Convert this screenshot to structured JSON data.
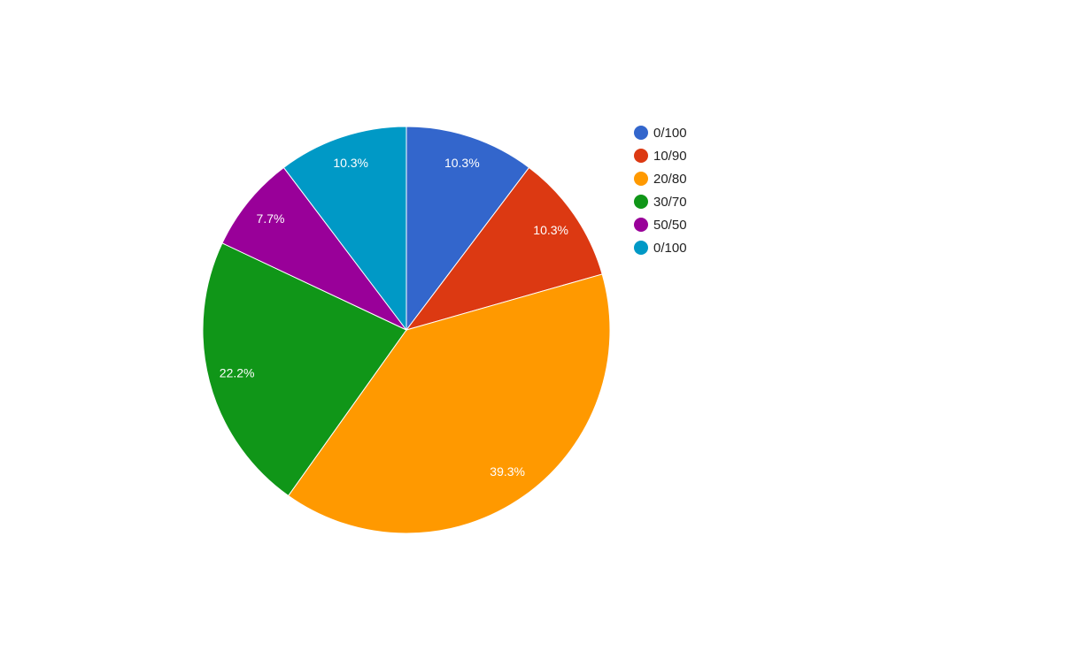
{
  "chart_data": {
    "type": "pie",
    "categories": [
      "0/100",
      "10/90",
      "20/80",
      "30/70",
      "50/50",
      "0/100"
    ],
    "values": [
      10.3,
      10.3,
      39.3,
      22.2,
      7.7,
      10.3
    ],
    "value_labels": [
      "10.3%",
      "10.3%",
      "39.3%",
      "22.2%",
      "7.7%",
      "10.3%"
    ],
    "colors": [
      "#3366cc",
      "#dc3912",
      "#ff9900",
      "#109618",
      "#990099",
      "#0099c6"
    ],
    "legend": "right"
  }
}
